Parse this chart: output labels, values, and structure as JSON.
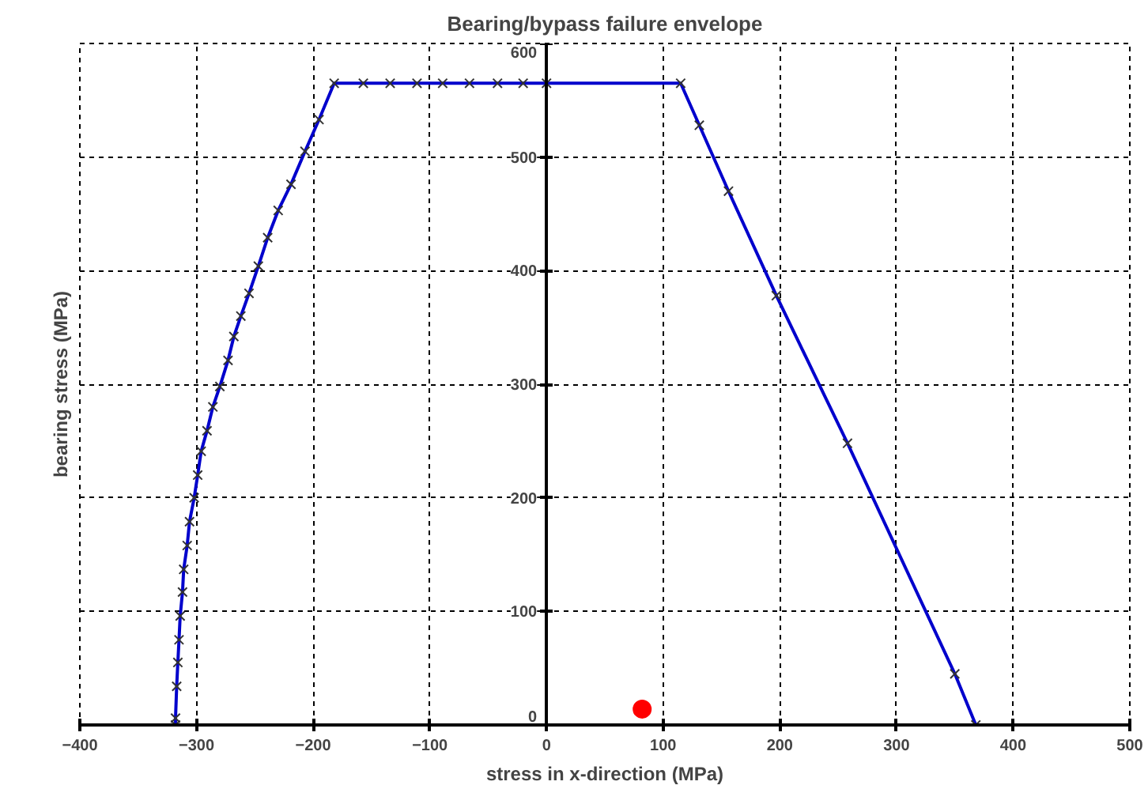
{
  "chart_data": {
    "type": "line",
    "title": "Bearing/bypass failure envelope",
    "xlabel": "stress in x-direction (MPa)",
    "ylabel": "bearing stress (MPa)",
    "xlim": [
      -400,
      500
    ],
    "ylim": [
      0,
      600
    ],
    "xticks": [
      -400,
      -300,
      -200,
      -100,
      0,
      100,
      200,
      300,
      400,
      500
    ],
    "yticks": [
      0,
      100,
      200,
      300,
      400,
      500,
      600
    ],
    "grid": true,
    "line_style": "solid",
    "series": [
      {
        "color": "#0000cc",
        "marker": "cross",
        "x": [
          -318,
          -318,
          -317,
          -316,
          -315,
          -314,
          -312,
          -311,
          -308,
          -306,
          -302,
          -299,
          -296,
          -291,
          -286,
          -280,
          -273,
          -268,
          -262,
          -255,
          -247,
          -239,
          -230,
          -219,
          -207,
          -195,
          -182,
          -157,
          -134,
          -111,
          -89,
          -66,
          -42,
          -20,
          0,
          115,
          131,
          156,
          197,
          258,
          350,
          368
        ],
        "values": [
          0,
          6,
          34,
          55,
          75,
          96,
          117,
          137,
          158,
          179,
          200,
          220,
          241,
          259,
          280,
          298,
          321,
          342,
          360,
          380,
          404,
          429,
          453,
          476,
          505,
          533,
          565,
          565,
          565,
          565,
          565,
          565,
          565,
          565,
          565,
          565,
          528,
          470,
          378,
          248,
          45,
          0
        ]
      },
      {
        "type": "scatter",
        "color": "#ff0000",
        "marker": "circle",
        "x": [
          82
        ],
        "values": [
          14
        ]
      }
    ]
  }
}
